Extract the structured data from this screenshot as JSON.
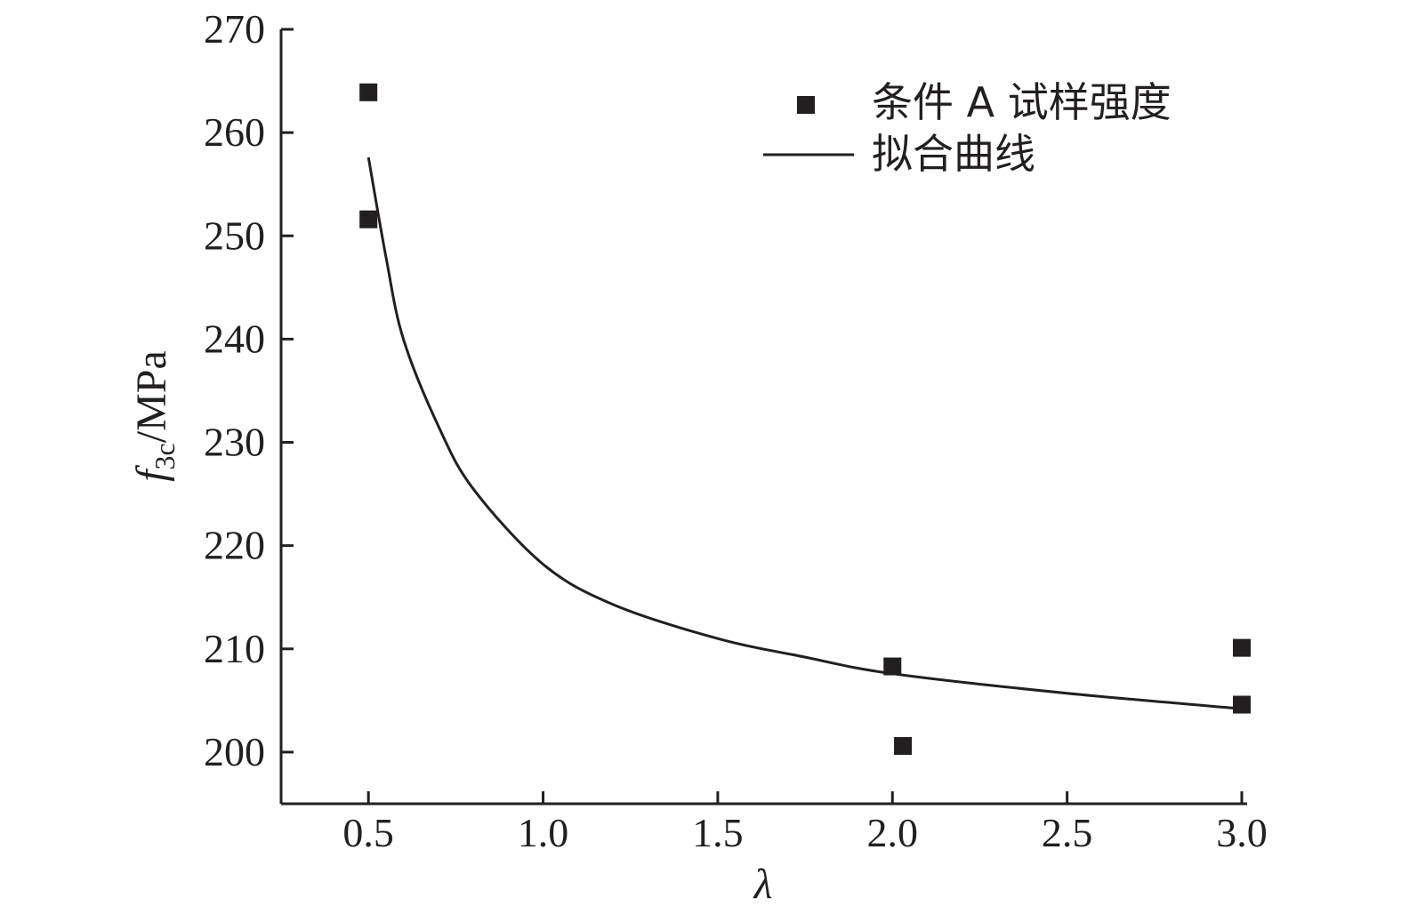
{
  "chart_data": {
    "type": "scatter",
    "title": "",
    "xlabel": "λ",
    "ylabel": {
      "main": "f",
      "subscript": "3c",
      "suffix": "/MPa"
    },
    "xlim": [
      0.25,
      3.0
    ],
    "ylim": [
      195,
      270
    ],
    "x_ticks": [
      0.5,
      1.0,
      1.5,
      2.0,
      2.5,
      3.0
    ],
    "x_tick_labels": [
      "0.5",
      "1.0",
      "1.5",
      "2.0",
      "2.5",
      "3.0"
    ],
    "y_ticks": [
      200,
      210,
      220,
      230,
      240,
      250,
      260,
      270
    ],
    "y_tick_labels": [
      "200",
      "210",
      "220",
      "230",
      "240",
      "250",
      "260",
      "270"
    ],
    "grid": false,
    "legend_position": "top-right",
    "series": [
      {
        "name": "条件 A 试样强度",
        "kind": "scatter",
        "marker": "square",
        "color": "#231f20",
        "points": [
          {
            "x": 0.5,
            "y": 263.9
          },
          {
            "x": 0.5,
            "y": 251.6
          },
          {
            "x": 2.0,
            "y": 208.3
          },
          {
            "x": 2.03,
            "y": 200.6
          },
          {
            "x": 3.0,
            "y": 210.1
          },
          {
            "x": 3.0,
            "y": 204.6
          }
        ]
      },
      {
        "name": "拟合曲线",
        "kind": "line",
        "color": "#231f20",
        "points": [
          {
            "x": 0.5,
            "y": 257.6
          },
          {
            "x": 0.55,
            "y": 248.0
          },
          {
            "x": 0.6,
            "y": 240.0
          },
          {
            "x": 0.7,
            "y": 231.6
          },
          {
            "x": 0.8,
            "y": 225.5
          },
          {
            "x": 1.0,
            "y": 218.2
          },
          {
            "x": 1.2,
            "y": 214.3
          },
          {
            "x": 1.5,
            "y": 211.0
          },
          {
            "x": 1.75,
            "y": 209.2
          },
          {
            "x": 2.0,
            "y": 207.6
          },
          {
            "x": 2.5,
            "y": 205.7
          },
          {
            "x": 3.0,
            "y": 204.2
          }
        ]
      }
    ]
  }
}
